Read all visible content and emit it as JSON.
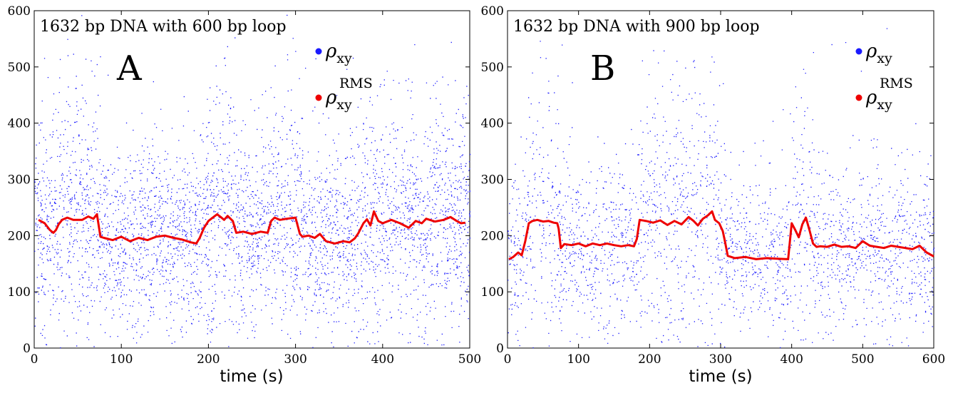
{
  "chart_data": [
    {
      "type": "scatter",
      "title": "1632 bp DNA with 600 bp loop",
      "panel_label": "A",
      "xlabel": "time (s)",
      "ylabel": "",
      "xlim": [
        0,
        500
      ],
      "ylim": [
        0,
        600
      ],
      "x_ticks": [
        0,
        100,
        200,
        300,
        400,
        500
      ],
      "y_ticks": [
        0,
        100,
        200,
        300,
        400,
        500,
        600
      ],
      "legend_position": "top-right",
      "series": [
        {
          "name": "ρxy",
          "symbol": "ρ",
          "sub": "xy",
          "sup": "",
          "style": "dots",
          "color": "#1a1aff",
          "points": 9000,
          "level_profile": [
            [
              0,
              228
            ],
            [
              15,
              215
            ],
            [
              22,
              205
            ],
            [
              30,
              225
            ],
            [
              50,
              230
            ],
            [
              70,
              238
            ],
            [
              75,
              198
            ],
            [
              90,
              196
            ],
            [
              110,
              192
            ],
            [
              140,
              200
            ],
            [
              160,
              195
            ],
            [
              185,
              188
            ],
            [
              200,
              228
            ],
            [
              215,
              236
            ],
            [
              228,
              226
            ],
            [
              232,
              205
            ],
            [
              265,
              210
            ],
            [
              272,
              232
            ],
            [
              300,
              230
            ],
            [
              305,
              200
            ],
            [
              330,
              192
            ],
            [
              350,
              188
            ],
            [
              375,
              205
            ],
            [
              390,
              238
            ],
            [
              410,
              225
            ],
            [
              430,
              222
            ],
            [
              440,
              215
            ],
            [
              455,
              232
            ],
            [
              495,
              225
            ]
          ],
          "burst_segments": [
            [
              20,
              75
            ],
            [
              200,
              230
            ],
            [
              285,
              305
            ],
            [
              370,
              400
            ]
          ]
        },
        {
          "name": "ρxy RMS",
          "symbol": "ρ",
          "sub": "xy",
          "sup": "RMS",
          "style": "line",
          "color": "#ee0000",
          "x": [
            5,
            12,
            18,
            22,
            25,
            28,
            32,
            38,
            45,
            55,
            62,
            68,
            72,
            76,
            80,
            90,
            100,
            110,
            120,
            130,
            140,
            150,
            160,
            170,
            180,
            186,
            190,
            195,
            200,
            205,
            210,
            215,
            218,
            222,
            228,
            232,
            240,
            250,
            260,
            268,
            272,
            276,
            282,
            290,
            300,
            305,
            308,
            315,
            322,
            328,
            335,
            345,
            355,
            362,
            368,
            372,
            378,
            382,
            386,
            390,
            395,
            400,
            410,
            420,
            430,
            438,
            445,
            450,
            460,
            470,
            478,
            485,
            490,
            495
          ],
          "y": [
            228,
            222,
            210,
            205,
            210,
            220,
            228,
            232,
            228,
            228,
            234,
            230,
            238,
            198,
            196,
            192,
            198,
            190,
            196,
            192,
            198,
            200,
            196,
            193,
            188,
            186,
            196,
            214,
            226,
            232,
            238,
            232,
            228,
            235,
            226,
            205,
            207,
            203,
            207,
            205,
            226,
            232,
            228,
            230,
            232,
            203,
            198,
            200,
            196,
            203,
            190,
            186,
            190,
            188,
            195,
            204,
            222,
            229,
            218,
            243,
            226,
            222,
            228,
            222,
            214,
            226,
            222,
            230,
            225,
            228,
            233,
            226,
            222,
            223
          ]
        }
      ]
    },
    {
      "type": "scatter",
      "title": "1632 bp DNA with 900 bp loop",
      "panel_label": "B",
      "xlabel": "time (s)",
      "ylabel": "",
      "xlim": [
        0,
        600
      ],
      "ylim": [
        0,
        600
      ],
      "x_ticks": [
        0,
        100,
        200,
        300,
        400,
        500,
        600
      ],
      "y_ticks": [
        0,
        100,
        200,
        300,
        400,
        500,
        600
      ],
      "legend_position": "top-right",
      "series": [
        {
          "name": "ρxy",
          "symbol": "ρ",
          "sub": "xy",
          "sup": "",
          "style": "dots",
          "color": "#1a1aff",
          "points": 10500,
          "level_profile": [
            [
              0,
              160
            ],
            [
              20,
              168
            ],
            [
              30,
              226
            ],
            [
              70,
              225
            ],
            [
              75,
              180
            ],
            [
              175,
              182
            ],
            [
              185,
              228
            ],
            [
              280,
              232
            ],
            [
              290,
              238
            ],
            [
              305,
              202
            ],
            [
              310,
              162
            ],
            [
              395,
              160
            ],
            [
              400,
              222
            ],
            [
              415,
              205
            ],
            [
              425,
              232
            ],
            [
              435,
              180
            ],
            [
              600,
              165
            ]
          ],
          "burst_segments": [
            [
              28,
              72
            ],
            [
              180,
              310
            ],
            [
              400,
              430
            ]
          ]
        },
        {
          "name": "ρxy RMS",
          "symbol": "ρ",
          "sub": "xy",
          "sup": "RMS",
          "style": "line",
          "color": "#ee0000",
          "x": [
            2,
            8,
            15,
            20,
            25,
            30,
            35,
            42,
            50,
            58,
            65,
            70,
            72,
            75,
            80,
            90,
            100,
            110,
            120,
            130,
            140,
            150,
            160,
            170,
            178,
            182,
            186,
            195,
            205,
            215,
            225,
            235,
            245,
            255,
            262,
            268,
            275,
            282,
            288,
            292,
            298,
            303,
            306,
            310,
            320,
            335,
            350,
            365,
            380,
            395,
            400,
            405,
            410,
            415,
            420,
            425,
            430,
            435,
            440,
            450,
            460,
            470,
            480,
            490,
            500,
            510,
            520,
            530,
            540,
            550,
            560,
            570,
            580,
            590,
            600
          ],
          "y": [
            158,
            162,
            170,
            165,
            190,
            222,
            226,
            228,
            225,
            226,
            223,
            222,
            212,
            178,
            185,
            183,
            186,
            181,
            186,
            183,
            186,
            183,
            181,
            183,
            181,
            194,
            228,
            226,
            223,
            227,
            219,
            226,
            220,
            233,
            226,
            218,
            230,
            236,
            243,
            228,
            222,
            208,
            190,
            164,
            160,
            162,
            158,
            160,
            159,
            158,
            222,
            210,
            197,
            220,
            232,
            210,
            186,
            180,
            181,
            180,
            184,
            180,
            181,
            178,
            190,
            182,
            180,
            178,
            182,
            180,
            178,
            176,
            182,
            170,
            163
          ]
        }
      ]
    }
  ]
}
